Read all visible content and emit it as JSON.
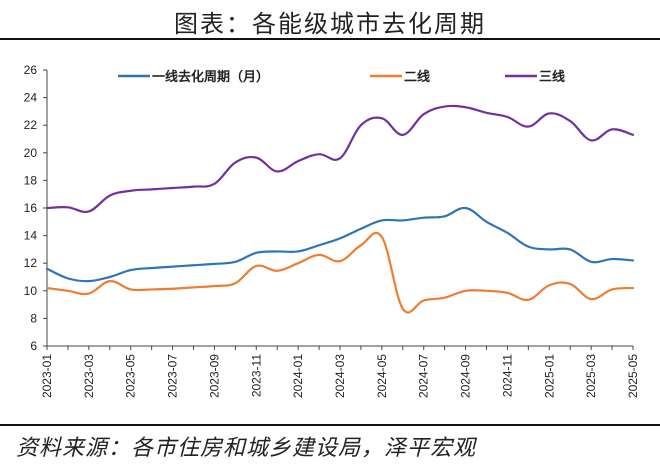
{
  "title": "图表：各能级城市去化周期",
  "source": "资料来源：各市住房和城乡建设局，泽平宏观",
  "chart_data": {
    "type": "line",
    "title": "",
    "xlabel": "",
    "ylabel": "",
    "ylim": [
      6,
      26
    ],
    "yticks": [
      6,
      8,
      10,
      12,
      14,
      16,
      18,
      20,
      22,
      24,
      26
    ],
    "grid": false,
    "legend_position": "top",
    "x": [
      "2023-01",
      "2023-02",
      "2023-03",
      "2023-04",
      "2023-05",
      "2023-06",
      "2023-07",
      "2023-08",
      "2023-09",
      "2023-10",
      "2023-11",
      "2023-12",
      "2024-01",
      "2024-02",
      "2024-03",
      "2024-04",
      "2024-05",
      "2024-06",
      "2024-07",
      "2024-08",
      "2024-09",
      "2024-10",
      "2024-11",
      "2024-12",
      "2025-01",
      "2025-02",
      "2025-03",
      "2025-04",
      "2025-05"
    ],
    "xtick_labels": [
      "2023-01",
      "2023-03",
      "2023-05",
      "2023-07",
      "2023-09",
      "2023-11",
      "2024-01",
      "2024-03",
      "2024-05",
      "2024-07",
      "2024-09",
      "2024-11",
      "2025-01",
      "2025-03",
      "2025-05"
    ],
    "series": [
      {
        "name": "一线去化周期（月）",
        "color": "#2E75B6",
        "values": [
          11.6,
          10.9,
          10.7,
          11.0,
          11.5,
          11.65,
          11.75,
          11.85,
          11.95,
          12.1,
          12.75,
          12.85,
          12.85,
          13.3,
          13.8,
          14.5,
          15.1,
          15.1,
          15.3,
          15.4,
          16.0,
          15.0,
          14.2,
          13.2,
          13.0,
          13.0,
          12.1,
          12.3,
          12.2
        ]
      },
      {
        "name": "二线",
        "color": "#ED7D31",
        "values": [
          10.2,
          10.0,
          9.8,
          10.7,
          10.1,
          10.1,
          10.15,
          10.25,
          10.35,
          10.55,
          11.8,
          11.45,
          12.0,
          12.6,
          12.15,
          13.3,
          13.9,
          8.7,
          9.3,
          9.5,
          10.0,
          10.0,
          9.85,
          9.35,
          10.4,
          10.5,
          9.4,
          10.1,
          10.2
        ]
      },
      {
        "name": "三线",
        "color": "#7030A0",
        "values": [
          16.0,
          16.05,
          15.75,
          16.9,
          17.25,
          17.35,
          17.45,
          17.55,
          17.75,
          19.3,
          19.65,
          18.65,
          19.4,
          19.9,
          19.6,
          22.0,
          22.5,
          21.3,
          22.8,
          23.35,
          23.3,
          22.9,
          22.6,
          21.9,
          22.85,
          22.3,
          20.9,
          21.7,
          21.3
        ]
      }
    ]
  }
}
